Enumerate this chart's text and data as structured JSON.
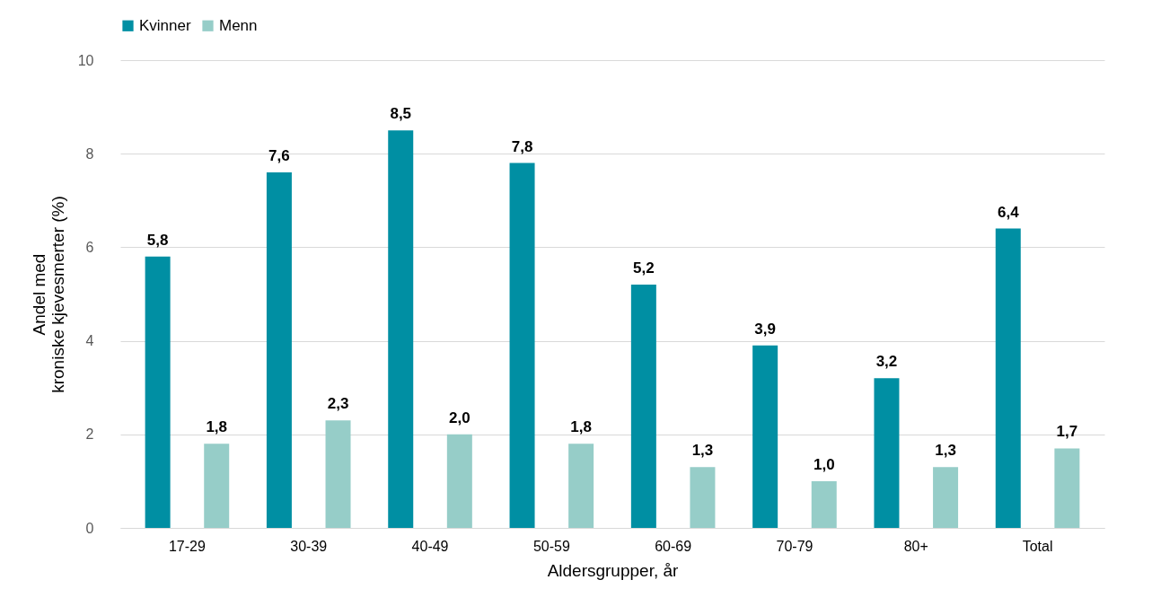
{
  "chart_data": {
    "type": "bar",
    "xlabel": "Aldersgrupper, år",
    "ylabel": "Andel med kroniske kjevesmerter (%)",
    "categories": [
      "17-29",
      "30-39",
      "40-49",
      "50-59",
      "60-69",
      "70-79",
      "80+",
      "Total"
    ],
    "series": [
      {
        "name": "Kvinner",
        "color": "#008fa3",
        "values": [
          5.8,
          7.6,
          8.5,
          7.8,
          5.2,
          3.9,
          3.2,
          6.4
        ],
        "value_labels": [
          "5,8",
          "7,6",
          "8,5",
          "7,8",
          "5,2",
          "3,9",
          "3,2",
          "6,4"
        ]
      },
      {
        "name": "Menn",
        "color": "#96cdc8",
        "values": [
          1.8,
          2.3,
          2.0,
          1.8,
          1.3,
          1.0,
          1.3,
          1.7
        ],
        "value_labels": [
          "1,8",
          "2,3",
          "2,0",
          "1,8",
          "1,3",
          "1,0",
          "1,3",
          "1,7"
        ]
      }
    ],
    "ylim": [
      0,
      10
    ],
    "yticks": [
      0,
      2,
      4,
      6,
      8,
      10
    ],
    "grid": "y",
    "legend": "top"
  }
}
